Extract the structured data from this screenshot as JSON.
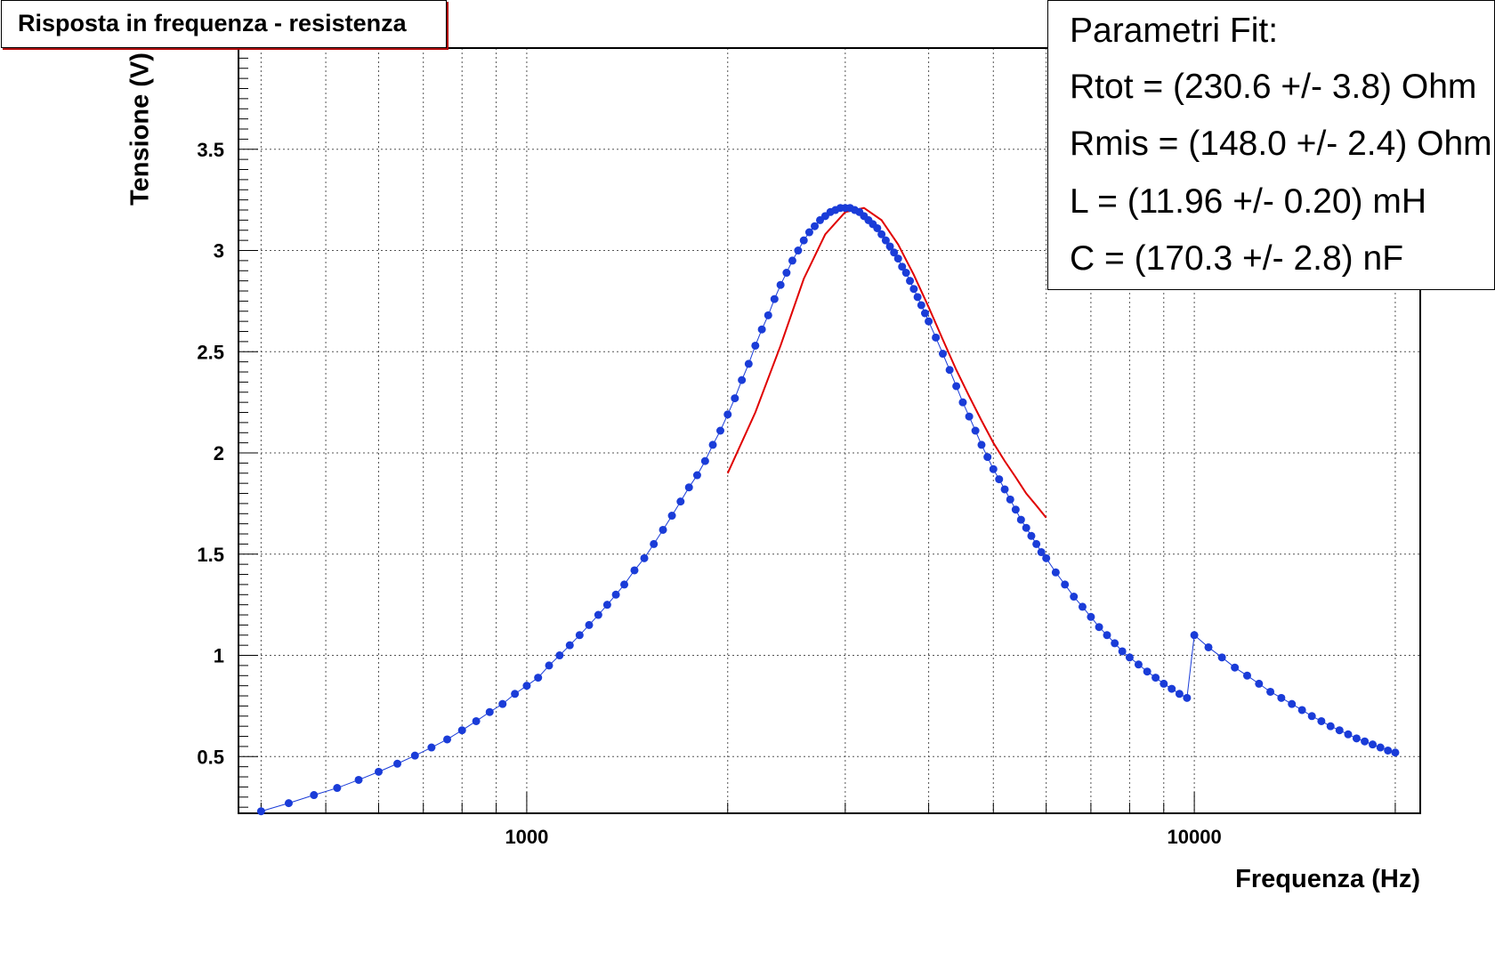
{
  "title": "Risposta in frequenza - resistenza",
  "fit_box": {
    "heading": "Parametri Fit:",
    "lines": [
      "Rtot = (230.6 +/- 3.8) Ohm",
      "Rmis = (148.0 +/- 2.4) Ohm",
      "L = (11.96 +/- 0.20) mH",
      "C = (170.3 +/- 2.8) nF"
    ]
  },
  "chart_data": {
    "type": "scatter",
    "title": "Risposta in frequenza - resistenza",
    "xlabel": "Frequenza (Hz)",
    "ylabel": "Tensione (V)",
    "xscale": "log",
    "xlim": [
      370,
      21800
    ],
    "ylim": [
      0.22,
      4.0
    ],
    "xticks": [
      1000,
      10000
    ],
    "yticks": [
      0.5,
      1,
      1.5,
      2,
      2.5,
      3,
      3.5
    ],
    "grid": true,
    "colors": {
      "data": "#1a3cd8",
      "fit": "#e00000"
    },
    "series": [
      {
        "kind": "data",
        "x": [
          400,
          440,
          480,
          520,
          560,
          600,
          640,
          680,
          720,
          760,
          800,
          840,
          880,
          920,
          960,
          1000,
          1040,
          1080,
          1120,
          1160,
          1200,
          1240,
          1280,
          1320,
          1360,
          1400,
          1450,
          1500,
          1550,
          1600,
          1650,
          1700,
          1750,
          1800,
          1850,
          1900,
          1950,
          2000,
          2050,
          2100,
          2150,
          2200,
          2250,
          2300,
          2350,
          2400,
          2450,
          2500,
          2550,
          2600,
          2650,
          2700,
          2750,
          2800,
          2850,
          2900,
          2950,
          3000,
          3050,
          3100,
          3150,
          3200,
          3250,
          3300,
          3350,
          3400,
          3450,
          3500,
          3550,
          3600,
          3650,
          3700,
          3750,
          3800,
          3850,
          3900,
          3950,
          4000,
          4100,
          4200,
          4300,
          4400,
          4500,
          4600,
          4700,
          4800,
          4900,
          5000,
          5100,
          5200,
          5300,
          5400,
          5500,
          5600,
          5700,
          5800,
          5900,
          6000,
          6200,
          6400,
          6600,
          6800,
          7000,
          7200,
          7400,
          7600,
          7800,
          8000,
          8250,
          8500,
          8750,
          9000,
          9250,
          9500,
          9750,
          10000,
          10500,
          11000,
          11500,
          12000,
          12500,
          13000,
          13500,
          14000,
          14500,
          15000,
          15500,
          16000,
          16500,
          17000,
          17500,
          18000,
          18500,
          19000,
          19500,
          20000
        ],
        "y": [
          0.23,
          0.27,
          0.31,
          0.345,
          0.385,
          0.425,
          0.465,
          0.505,
          0.545,
          0.585,
          0.63,
          0.675,
          0.72,
          0.76,
          0.81,
          0.85,
          0.89,
          0.95,
          1.0,
          1.05,
          1.1,
          1.15,
          1.2,
          1.25,
          1.3,
          1.35,
          1.42,
          1.48,
          1.55,
          1.62,
          1.69,
          1.76,
          1.83,
          1.89,
          1.96,
          2.04,
          2.11,
          2.19,
          2.27,
          2.36,
          2.44,
          2.53,
          2.61,
          2.68,
          2.76,
          2.83,
          2.89,
          2.95,
          3.0,
          3.05,
          3.09,
          3.12,
          3.15,
          3.17,
          3.19,
          3.2,
          3.21,
          3.21,
          3.21,
          3.2,
          3.19,
          3.17,
          3.15,
          3.13,
          3.11,
          3.08,
          3.05,
          3.02,
          2.99,
          2.96,
          2.92,
          2.89,
          2.85,
          2.81,
          2.77,
          2.73,
          2.69,
          2.65,
          2.57,
          2.49,
          2.41,
          2.33,
          2.25,
          2.18,
          2.11,
          2.04,
          1.98,
          1.92,
          1.87,
          1.82,
          1.77,
          1.72,
          1.67,
          1.63,
          1.59,
          1.55,
          1.51,
          1.48,
          1.41,
          1.35,
          1.29,
          1.24,
          1.19,
          1.14,
          1.1,
          1.06,
          1.02,
          0.99,
          0.955,
          0.92,
          0.89,
          0.86,
          0.835,
          0.81,
          0.79,
          1.1,
          1.04,
          0.99,
          0.94,
          0.9,
          0.86,
          0.82,
          0.79,
          0.76,
          0.73,
          0.7,
          0.675,
          0.65,
          0.63,
          0.61,
          0.59,
          0.575,
          0.56,
          0.545,
          0.53,
          0.52
        ]
      },
      {
        "kind": "fit",
        "x": [
          2000,
          2200,
          2400,
          2600,
          2800,
          3000,
          3200,
          3400,
          3600,
          3800,
          4000,
          4200,
          4400,
          4600,
          4800,
          5000,
          5200,
          5400,
          5600,
          5800,
          6000
        ],
        "y": [
          1.9,
          2.2,
          2.53,
          2.86,
          3.08,
          3.19,
          3.21,
          3.15,
          3.03,
          2.88,
          2.72,
          2.56,
          2.41,
          2.28,
          2.16,
          2.05,
          1.96,
          1.88,
          1.8,
          1.74,
          1.68
        ]
      }
    ]
  }
}
